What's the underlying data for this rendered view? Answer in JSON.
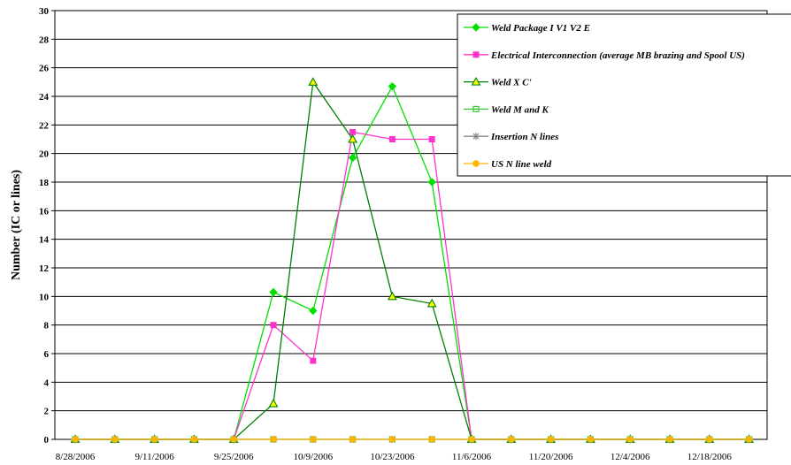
{
  "chart_data": {
    "type": "line",
    "title": "",
    "xlabel": "",
    "ylabel": "Number (IC or lines)",
    "ylim": [
      0,
      30
    ],
    "y_ticks": [
      0,
      2,
      4,
      6,
      8,
      10,
      12,
      14,
      16,
      18,
      20,
      22,
      24,
      26,
      28,
      30
    ],
    "x_tick_labels": [
      "8/28/2006",
      "9/11/2006",
      "9/25/2006",
      "10/9/2006",
      "10/23/2006",
      "11/6/2006",
      "11/20/2006",
      "12/4/2006",
      "12/18/2006"
    ],
    "x": [
      "8/28/2006",
      "9/4/2006",
      "9/11/2006",
      "9/18/2006",
      "9/25/2006",
      "10/2/2006",
      "10/9/2006",
      "10/16/2006",
      "10/23/2006",
      "10/30/2006",
      "11/6/2006",
      "11/13/2006",
      "11/20/2006",
      "11/27/2006",
      "12/4/2006",
      "12/11/2006",
      "12/18/2006",
      "12/25/2006"
    ],
    "grid": true,
    "legend_position": "top-right",
    "series": [
      {
        "name": "Weld Package I V1 V2  E",
        "color": "#00e000",
        "marker": "diamond",
        "values": [
          0,
          0,
          0,
          0,
          0,
          10.3,
          9,
          19.7,
          24.7,
          18,
          0,
          0,
          0,
          0,
          0,
          0,
          0,
          0
        ]
      },
      {
        "name": "Electrical Interconnection (average MB brazing and Spool US)",
        "color": "#ff33cc",
        "marker": "square-filled",
        "values": [
          0,
          0,
          0,
          0,
          0,
          8,
          5.5,
          21.5,
          21,
          21,
          0,
          0,
          0,
          0,
          0,
          0,
          0,
          0
        ]
      },
      {
        "name": "Weld  X C'",
        "color": "#008000",
        "marker": "triangle",
        "values": [
          0,
          0,
          0,
          0,
          0,
          2.5,
          25,
          21,
          10,
          9.5,
          0,
          0,
          0,
          0,
          0,
          0,
          0,
          0
        ]
      },
      {
        "name": "Weld M and K",
        "color": "#33cc33",
        "marker": "square-open",
        "values": [
          0,
          0,
          0,
          0,
          0,
          0,
          0,
          0,
          0,
          0,
          0,
          0,
          0,
          0,
          0,
          0,
          0,
          0
        ]
      },
      {
        "name": "Insertion N lines",
        "color": "#888888",
        "marker": "star",
        "values": [
          0,
          0,
          0,
          0,
          0,
          0,
          0,
          0,
          0,
          0,
          0,
          0,
          0,
          0,
          0,
          0,
          0,
          0
        ]
      },
      {
        "name": "US N line weld",
        "color": "#ffb400",
        "marker": "circle",
        "values": [
          0,
          0,
          0,
          0,
          0,
          0,
          0,
          0,
          0,
          0,
          0,
          0,
          0,
          0,
          0,
          0,
          0,
          0
        ]
      }
    ]
  }
}
